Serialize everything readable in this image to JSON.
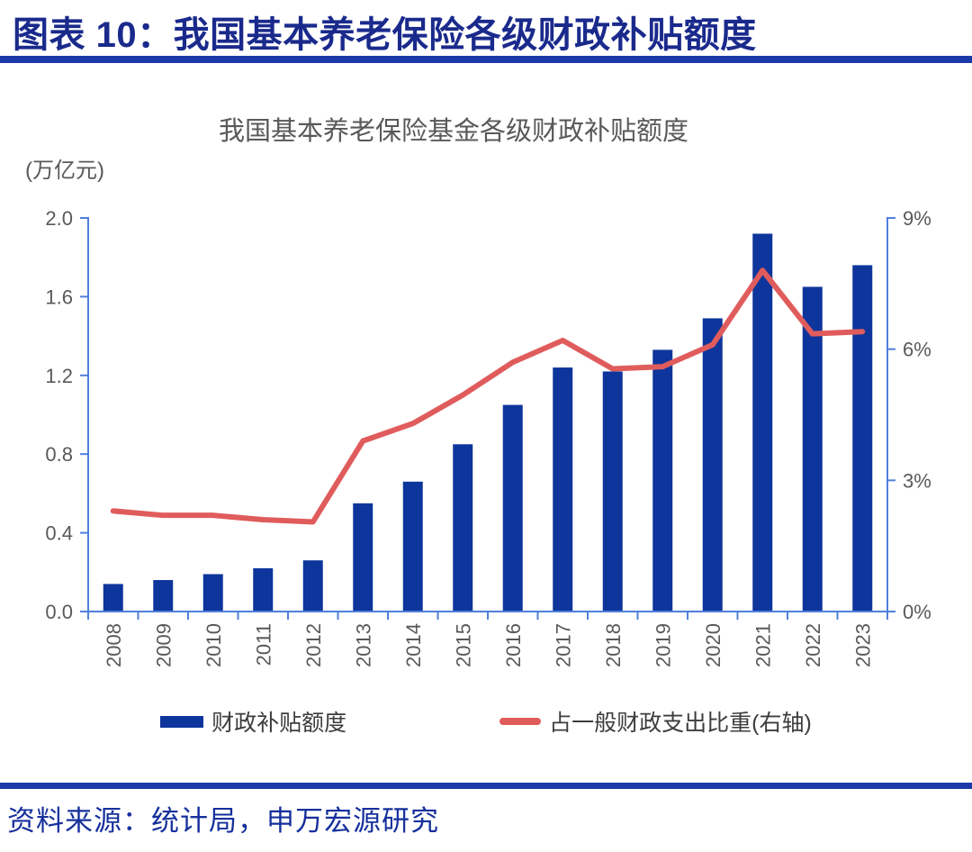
{
  "header": {
    "title": "图表 10：我国基本养老保险各级财政补贴额度"
  },
  "chart_data": {
    "type": "combo",
    "title": "我国基本养老保险基金各级财政补贴额度",
    "unit_label": "(万亿元)",
    "categories": [
      "2008",
      "2009",
      "2010",
      "2011",
      "2012",
      "2013",
      "2014",
      "2015",
      "2016",
      "2017",
      "2018",
      "2019",
      "2020",
      "2021",
      "2022",
      "2023"
    ],
    "series": [
      {
        "name": "财政补贴额度",
        "type": "bar",
        "axis": "left",
        "unit": "万亿元",
        "values": [
          0.14,
          0.16,
          0.19,
          0.22,
          0.26,
          0.55,
          0.66,
          0.85,
          1.05,
          1.24,
          1.22,
          1.33,
          1.49,
          1.92,
          1.65,
          1.76
        ]
      },
      {
        "name": "占一般财政支出比重(右轴)",
        "type": "line",
        "axis": "right",
        "unit": "%",
        "values": [
          2.3,
          2.2,
          2.2,
          2.1,
          2.05,
          3.9,
          4.3,
          4.95,
          5.7,
          6.2,
          5.55,
          5.6,
          6.1,
          7.8,
          6.35,
          6.4
        ]
      }
    ],
    "left_axis": {
      "min": 0,
      "max": 2.0,
      "ticks": [
        "0.0",
        "0.4",
        "0.8",
        "1.2",
        "1.6",
        "2.0"
      ]
    },
    "right_axis": {
      "min": 0,
      "max": 9,
      "ticks": [
        "0%",
        "3%",
        "6%",
        "9%"
      ]
    },
    "legend_position": "bottom",
    "grid": false
  },
  "footer": {
    "source": "资料来源：统计局，申万宏源研究"
  },
  "colors": {
    "bar": "#0E359B",
    "line": "#E05C5C",
    "axis": "#4F7FDB",
    "tick_label": "#595959",
    "chart_title": "#595959",
    "header_navy": "#1A2A8C",
    "divider": "#1B3AA8",
    "legend_text": "#3D3D3D",
    "source_text": "#16309C"
  }
}
